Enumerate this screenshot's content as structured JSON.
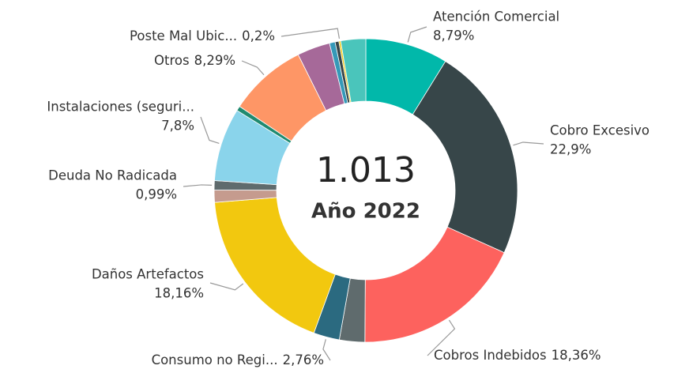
{
  "chart_data": {
    "type": "pie",
    "donut": true,
    "center_value": "1.013",
    "center_label": "Año 2022",
    "categories": [
      "Atención Comercial",
      "Cobro Excesivo",
      "Cobros Indebidos",
      null,
      "Consumo no Regi...",
      "Daños Artefactos",
      null,
      "Deuda No Radicada",
      "Instalaciones (seguri...",
      null,
      "Otros",
      null,
      null,
      null,
      "Poste Mal Ubic...",
      null
    ],
    "values": [
      8.79,
      22.9,
      18.36,
      2.7,
      2.76,
      18.16,
      1.3,
      0.99,
      7.8,
      0.5,
      8.29,
      3.5,
      0.6,
      0.4,
      0.2,
      2.65
    ],
    "value_labels": [
      "8,79%",
      "22,9%",
      "18,36%",
      null,
      "2,76%",
      "18,16%",
      null,
      "0,99%",
      "7,8%",
      null,
      "8,29%",
      null,
      null,
      null,
      "0,2%",
      null
    ],
    "colors": [
      "#01B8AA",
      "#374649",
      "#FD625E",
      "#5F6B6D",
      "#2B6A80",
      "#F2C80F",
      "#C59B8E",
      "#5F6B6D",
      "#8AD4EB",
      "#1F8A70",
      "#FE9666",
      "#A66999",
      "#3599B8",
      "#374649",
      "#F2C80F",
      "#4AC5BB"
    ]
  }
}
